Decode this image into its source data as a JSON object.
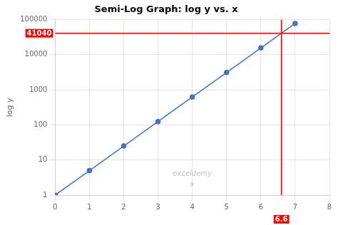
{
  "chart_data": {
    "type": "line",
    "title": "Semi-Log Graph: log y vs. x",
    "ylabel": "log y",
    "x": [
      0,
      1,
      2,
      3,
      4,
      5,
      6,
      7
    ],
    "values": [
      1,
      5,
      25,
      125,
      625,
      3125,
      15625,
      78125
    ],
    "color": "#4472C4",
    "marker": "circle",
    "xlim": [
      0,
      8
    ],
    "xticks": [
      0,
      1,
      2,
      3,
      4,
      5,
      6,
      7,
      8
    ],
    "ylim": [
      1,
      100000
    ],
    "yticks": [
      1,
      10,
      100,
      1000,
      10000,
      100000
    ],
    "log": "y",
    "grid": true,
    "annotations": [
      {
        "type": "hline",
        "y": 41040,
        "label": "41040",
        "color": "#FF0000"
      },
      {
        "type": "vline",
        "x": 6.6,
        "label": "6.6",
        "color": "#FF0000"
      },
      {
        "type": "text",
        "text": "exceldemy"
      },
      {
        "type": "text",
        "text": "x"
      }
    ]
  }
}
